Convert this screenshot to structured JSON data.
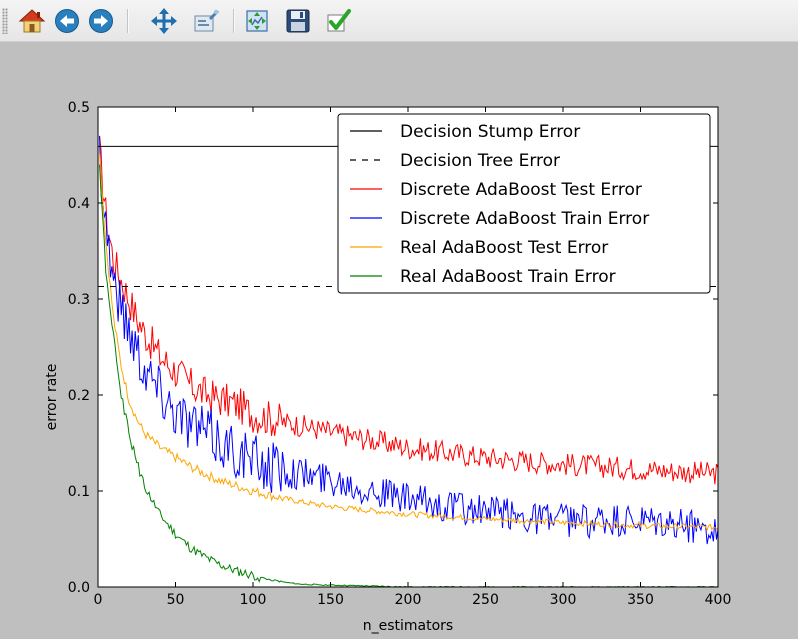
{
  "toolbar": {
    "buttons": [
      {
        "id": "home",
        "icon": "home-icon",
        "tooltip": "Reset original view"
      },
      {
        "id": "back",
        "icon": "back-arrow-icon",
        "tooltip": "Back to previous view"
      },
      {
        "id": "forward",
        "icon": "forward-arrow-icon",
        "tooltip": "Forward to next view"
      },
      {
        "id": "pan",
        "icon": "pan-arrows-icon",
        "tooltip": "Pan axes"
      },
      {
        "id": "zoom",
        "icon": "zoom-rect-icon",
        "tooltip": "Zoom to rectangle"
      },
      {
        "id": "subplots",
        "icon": "subplots-icon",
        "tooltip": "Configure subplots"
      },
      {
        "id": "save",
        "icon": "save-disk-icon",
        "tooltip": "Save the figure"
      },
      {
        "id": "edit",
        "icon": "checkmark-icon",
        "tooltip": "Edit curves line and axes parameters"
      }
    ]
  },
  "colors": {
    "stump": "#000000",
    "tree": "#000000",
    "discrete_test": "#ff0000",
    "discrete_train": "#0000ff",
    "real_test": "#ffa500",
    "real_train": "#008000",
    "background": "#bfbfbf",
    "plot_bg": "#ffffff"
  },
  "chart_data": {
    "type": "line",
    "title": "",
    "xlabel": "n_estimators",
    "ylabel": "error rate",
    "xlim": [
      0,
      400
    ],
    "ylim": [
      0.0,
      0.5
    ],
    "xticks": [
      0,
      50,
      100,
      150,
      200,
      250,
      300,
      350,
      400
    ],
    "xtick_labels": [
      "0",
      "50",
      "100",
      "150",
      "200",
      "250",
      "300",
      "350",
      "400"
    ],
    "yticks": [
      0.0,
      0.1,
      0.2,
      0.3,
      0.4,
      0.5
    ],
    "ytick_labels": [
      "0.0",
      "0.1",
      "0.2",
      "0.3",
      "0.4",
      "0.5"
    ],
    "grid": false,
    "legend_position": "upper-right",
    "hlines": [
      {
        "name": "Decision Stump Error",
        "y": 0.459,
        "color": "#000000",
        "style": "solid"
      },
      {
        "name": "Decision Tree Error",
        "y": 0.313,
        "color": "#000000",
        "style": "dashed"
      }
    ],
    "series": [
      {
        "name": "Discrete AdaBoost Test Error",
        "color": "#ff0000",
        "x": [
          1,
          5,
          10,
          15,
          20,
          25,
          30,
          40,
          50,
          60,
          70,
          80,
          90,
          100,
          120,
          140,
          160,
          180,
          200,
          250,
          300,
          350,
          400
        ],
        "y": [
          0.455,
          0.39,
          0.34,
          0.32,
          0.3,
          0.28,
          0.265,
          0.24,
          0.225,
          0.21,
          0.2,
          0.195,
          0.19,
          0.18,
          0.172,
          0.165,
          0.158,
          0.152,
          0.145,
          0.135,
          0.128,
          0.123,
          0.118
        ],
        "noise": 0.012
      },
      {
        "name": "Discrete AdaBoost Train Error",
        "color": "#0000ff",
        "x": [
          1,
          5,
          10,
          15,
          20,
          25,
          30,
          40,
          50,
          60,
          70,
          80,
          90,
          100,
          120,
          140,
          160,
          180,
          200,
          250,
          300,
          350,
          400
        ],
        "y": [
          0.455,
          0.38,
          0.32,
          0.29,
          0.27,
          0.25,
          0.23,
          0.205,
          0.185,
          0.17,
          0.16,
          0.15,
          0.14,
          0.13,
          0.122,
          0.115,
          0.11,
          0.1,
          0.09,
          0.078,
          0.07,
          0.066,
          0.062
        ],
        "noise": 0.018
      },
      {
        "name": "Real AdaBoost Test Error",
        "color": "#ffa500",
        "x": [
          1,
          5,
          10,
          15,
          20,
          25,
          30,
          40,
          50,
          60,
          70,
          80,
          90,
          100,
          120,
          140,
          160,
          180,
          200,
          250,
          300,
          350,
          400
        ],
        "y": [
          0.45,
          0.36,
          0.28,
          0.23,
          0.195,
          0.175,
          0.16,
          0.145,
          0.135,
          0.125,
          0.117,
          0.11,
          0.105,
          0.1,
          0.092,
          0.086,
          0.082,
          0.079,
          0.076,
          0.071,
          0.067,
          0.064,
          0.062
        ],
        "noise": 0.003
      },
      {
        "name": "Real AdaBoost Train Error",
        "color": "#008000",
        "x": [
          1,
          5,
          10,
          15,
          20,
          25,
          30,
          40,
          50,
          60,
          70,
          80,
          90,
          100,
          110,
          120,
          130,
          150,
          175,
          200,
          250,
          300,
          350,
          400
        ],
        "y": [
          0.44,
          0.33,
          0.26,
          0.2,
          0.16,
          0.13,
          0.105,
          0.075,
          0.055,
          0.04,
          0.03,
          0.022,
          0.016,
          0.012,
          0.008,
          0.005,
          0.003,
          0.002,
          0.001,
          0.0,
          0.0,
          0.0,
          0.0,
          0.0
        ],
        "noise": 0.003
      }
    ]
  }
}
